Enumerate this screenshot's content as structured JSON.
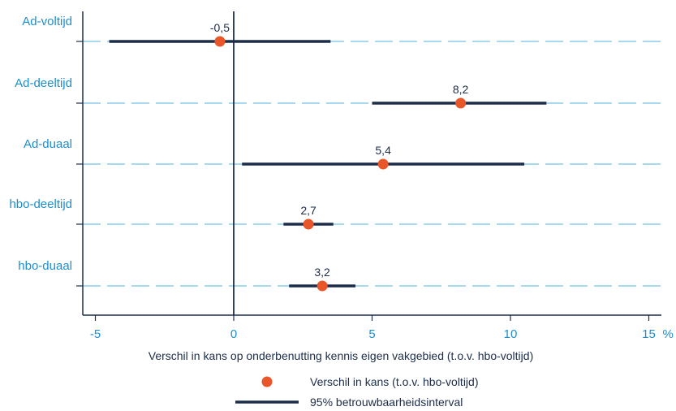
{
  "chart_data": {
    "type": "scatter",
    "subtype": "forest-plot",
    "categories": [
      "Ad-voltijd",
      "Ad-deeltijd",
      "Ad-duaal",
      "hbo-deeltijd",
      "hbo-duaal"
    ],
    "series": [
      {
        "name": "Verschil in kans (t.o.v. hbo-voltijd)",
        "values": [
          -0.5,
          8.2,
          5.4,
          2.7,
          3.2
        ],
        "labels": [
          "-0,5",
          "8,2",
          "5,4",
          "2,7",
          "3,2"
        ]
      },
      {
        "name": "95% betrouwbaarheidsinterval",
        "lower": [
          -4.5,
          5.0,
          0.3,
          1.8,
          2.0
        ],
        "upper": [
          3.5,
          11.3,
          10.5,
          3.6,
          4.4
        ]
      }
    ],
    "xlabel": "Verschil in kans op onderbenutting kennis eigen vakgebied (t.o.v. hbo-voltijd)",
    "x_unit": "%",
    "xlim": [
      -5.5,
      15.5
    ],
    "xticks": [
      -5,
      0,
      5,
      10,
      15
    ],
    "xtick_labels": [
      "-5",
      "0",
      "5",
      "10",
      "15"
    ],
    "reference_line": 0,
    "grid": "horizontal dashed per category",
    "legend_position": "bottom",
    "colors": {
      "point": "#e8562a",
      "interval": "#1c2d4a",
      "grid": "#4fb3e3",
      "label_text": "#1a8fd0",
      "axis": "#1c2d4a"
    }
  }
}
